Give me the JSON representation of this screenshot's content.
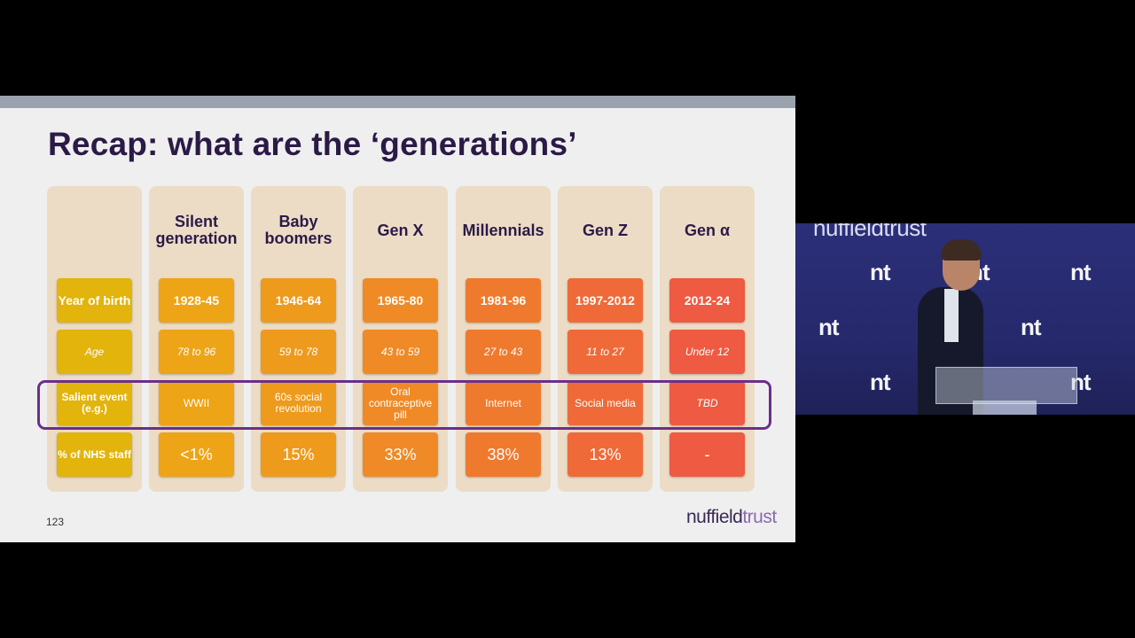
{
  "slide": {
    "title": "Recap: what are the ‘generations’",
    "number": "123",
    "logo": {
      "part1": "nuffield",
      "part2": "trust"
    }
  },
  "table": {
    "row_labels": [
      "Year of birth",
      "Age",
      "Salient event (e.g.)",
      "% of NHS staff"
    ],
    "row_label_color": "#e2b40c",
    "columns": [
      {
        "name": "Silent generation",
        "color": "#eda416",
        "cells": [
          "1928-45",
          "78 to 96",
          "WWII",
          "<1%"
        ]
      },
      {
        "name": "Baby boomers",
        "color": "#ee9a1c",
        "cells": [
          "1946-64",
          "59 to 78",
          "60s social revolution",
          "15%"
        ]
      },
      {
        "name": "Gen X",
        "color": "#ef8a26",
        "cells": [
          "1965-80",
          "43 to 59",
          "Oral contraceptive pill",
          "33%"
        ]
      },
      {
        "name": "Millennials",
        "color": "#ef7a2e",
        "cells": [
          "1981-96",
          "27 to 43",
          "Internet",
          "38%"
        ]
      },
      {
        "name": "Gen Z",
        "color": "#ef6a38",
        "cells": [
          "1997-2012",
          "11 to 27",
          "Social media",
          "13%"
        ]
      },
      {
        "name": "Gen α",
        "color": "#ee5a42",
        "cells": [
          "2012-24",
          "Under 12",
          "TBD",
          "-"
        ]
      }
    ]
  },
  "video": {
    "banner": "nuffieldtrust",
    "wall_logo": "nt"
  }
}
